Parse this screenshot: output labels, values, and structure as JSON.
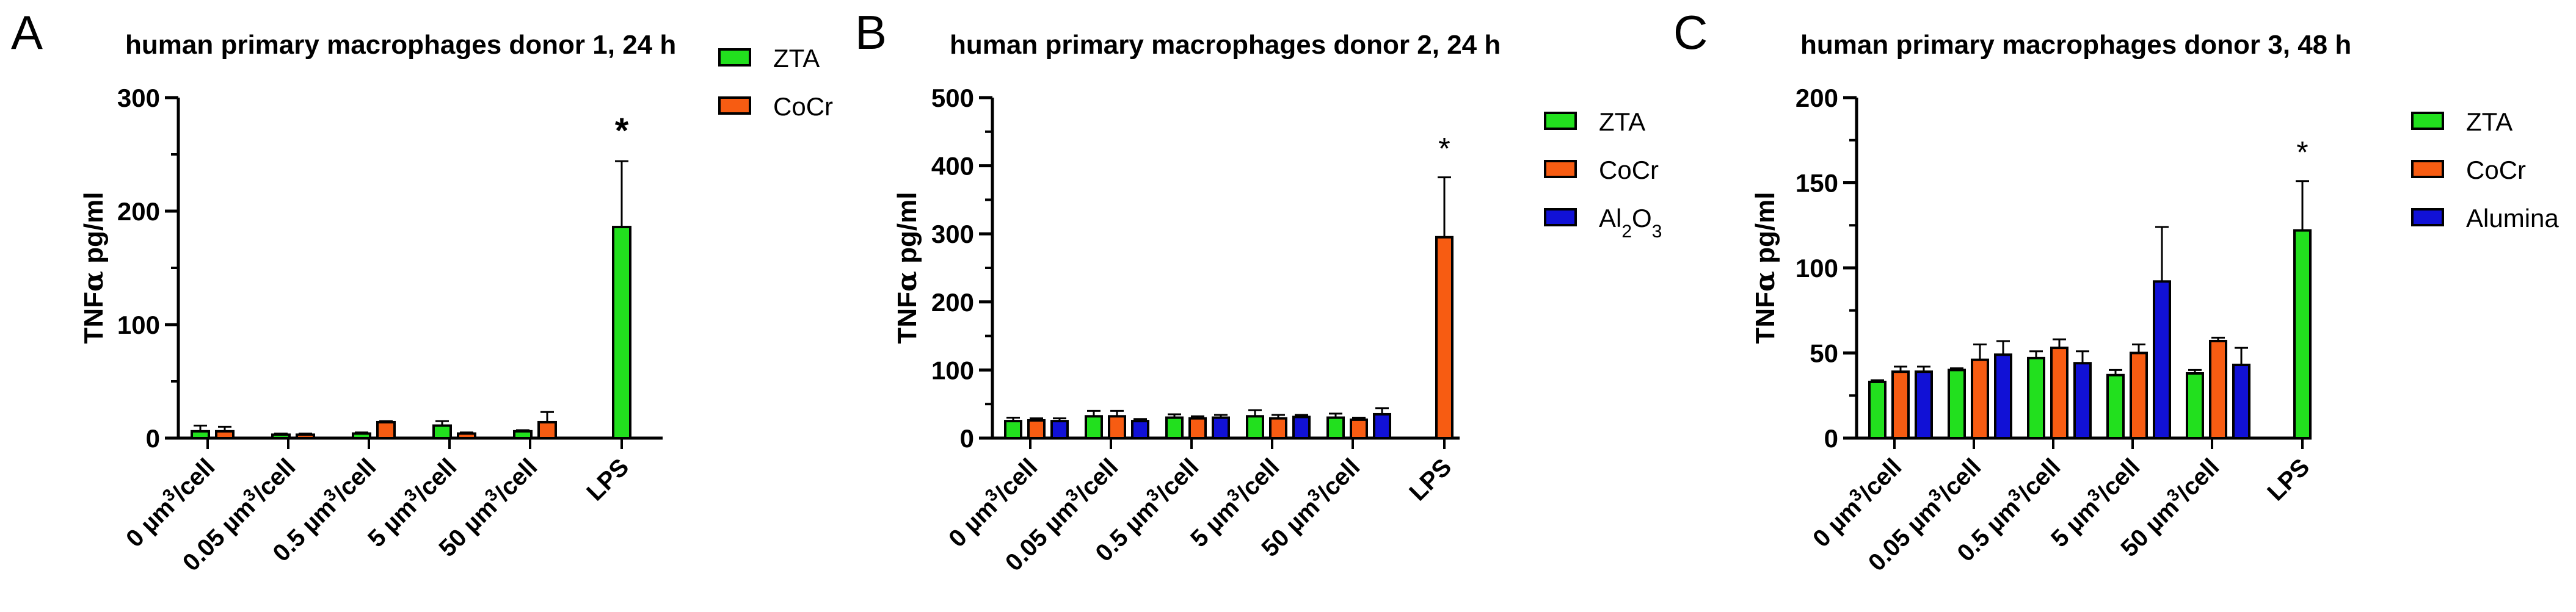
{
  "chart_data": [
    {
      "type": "bar",
      "panel_label": "A",
      "title": "human primary macrophages donor 1, 24 h",
      "ylabel": "TNFα pg/ml",
      "ylabel_parts": [
        "TNF",
        "α",
        " pg/ml"
      ],
      "ylim": [
        0,
        300
      ],
      "yticks": [
        "0",
        "100",
        "200",
        "300"
      ],
      "categories": [
        "0 µm³/cell",
        "0.05 µm³/cell",
        "0.5 µm³/cell",
        "5 µm³/cell",
        "50 µm³/cell",
        "LPS"
      ],
      "category_parts": [
        [
          "0 µm",
          "3",
          "/cell"
        ],
        [
          "0.05 µm",
          "3",
          "/cell"
        ],
        [
          "0.5 µm",
          "3",
          "/cell"
        ],
        [
          "5 µm",
          "3",
          "/cell"
        ],
        [
          "50 µm",
          "3",
          "/cell"
        ],
        [
          "LPS",
          "",
          ""
        ]
      ],
      "series": [
        {
          "name": "ZTA",
          "color": "#22e01e",
          "values": [
            6,
            3,
            4,
            11,
            6,
            186
          ],
          "errors": [
            5,
            1,
            1,
            4,
            1,
            58
          ]
        },
        {
          "name": "CoCr",
          "color": "#f75c12",
          "values": [
            6,
            3,
            14,
            4,
            14,
            null
          ],
          "errors": [
            4,
            1,
            1,
            1,
            9,
            null
          ]
        }
      ],
      "annotations": [
        {
          "text": "*",
          "category": "LPS"
        }
      ],
      "legend": "top-right"
    },
    {
      "type": "bar",
      "panel_label": "B",
      "title": "human primary macrophages donor 2, 24 h",
      "ylabel": "TNFα pg/ml",
      "ylabel_parts": [
        "TNF",
        "α",
        " pg/ml"
      ],
      "ylim": [
        0,
        500
      ],
      "yticks": [
        "0",
        "100",
        "200",
        "300",
        "400",
        "500"
      ],
      "categories": [
        "0 µm³/cell",
        "0.05 µm³/cell",
        "0.5 µm³/cell",
        "5 µm³/cell",
        "50 µm³/cell",
        "LPS"
      ],
      "category_parts": [
        [
          "0 µm",
          "3",
          "/cell"
        ],
        [
          "0.05 µm",
          "3",
          "/cell"
        ],
        [
          "0.5 µm",
          "3",
          "/cell"
        ],
        [
          "5 µm",
          "3",
          "/cell"
        ],
        [
          "50 µm",
          "3",
          "/cell"
        ],
        [
          "LPS",
          "",
          ""
        ]
      ],
      "series": [
        {
          "name": "ZTA",
          "color": "#22e01e",
          "values": [
            25,
            32,
            30,
            32,
            30,
            null
          ],
          "errors": [
            5,
            8,
            5,
            9,
            6,
            null
          ]
        },
        {
          "name": "CoCr",
          "color": "#f75c12",
          "values": [
            26,
            32,
            29,
            29,
            27,
            295
          ],
          "errors": [
            3,
            8,
            3,
            5,
            3,
            88
          ]
        },
        {
          "name": "Al2O3",
          "name_parts": [
            "Al",
            "2",
            "O",
            "3"
          ],
          "color": "#1111d6",
          "values": [
            25,
            25,
            30,
            31,
            35,
            null
          ],
          "errors": [
            4,
            3,
            4,
            3,
            9,
            null
          ]
        }
      ],
      "annotations": [
        {
          "text": "*",
          "category": "LPS"
        }
      ],
      "legend": "top-right"
    },
    {
      "type": "bar",
      "panel_label": "C",
      "title": "human primary macrophages donor 3, 48 h",
      "ylabel": "TNFα pg/ml",
      "ylabel_parts": [
        "TNF",
        "α",
        " pg/ml"
      ],
      "ylim": [
        0,
        200
      ],
      "yticks": [
        "0",
        "50",
        "100",
        "150",
        "200"
      ],
      "categories": [
        "0 µm³/cell",
        "0.05 µm³/cell",
        "0.5 µm³/cell",
        "5 µm³/cell",
        "50 µm³/cell",
        "LPS"
      ],
      "category_parts": [
        [
          "0 µm",
          "3",
          "/cell"
        ],
        [
          "0.05 µm",
          "3",
          "/cell"
        ],
        [
          "0.5 µm",
          "3",
          "/cell"
        ],
        [
          "5 µm",
          "3",
          "/cell"
        ],
        [
          "50 µm",
          "3",
          "/cell"
        ],
        [
          "LPS",
          "",
          ""
        ]
      ],
      "series": [
        {
          "name": "ZTA",
          "color": "#22e01e",
          "values": [
            33,
            40,
            47,
            37,
            38,
            122
          ],
          "errors": [
            1,
            1,
            4,
            3,
            2,
            29
          ]
        },
        {
          "name": "CoCr",
          "color": "#f75c12",
          "values": [
            39,
            46,
            53,
            50,
            57,
            null
          ],
          "errors": [
            3,
            9,
            5,
            5,
            2,
            null
          ]
        },
        {
          "name": "Alumina",
          "color": "#1111d6",
          "values": [
            39,
            49,
            44,
            92,
            43,
            null
          ],
          "errors": [
            3,
            8,
            7,
            32,
            10,
            null
          ]
        }
      ],
      "annotations": [
        {
          "text": "*",
          "category": "LPS"
        }
      ],
      "legend": "top-right"
    }
  ]
}
